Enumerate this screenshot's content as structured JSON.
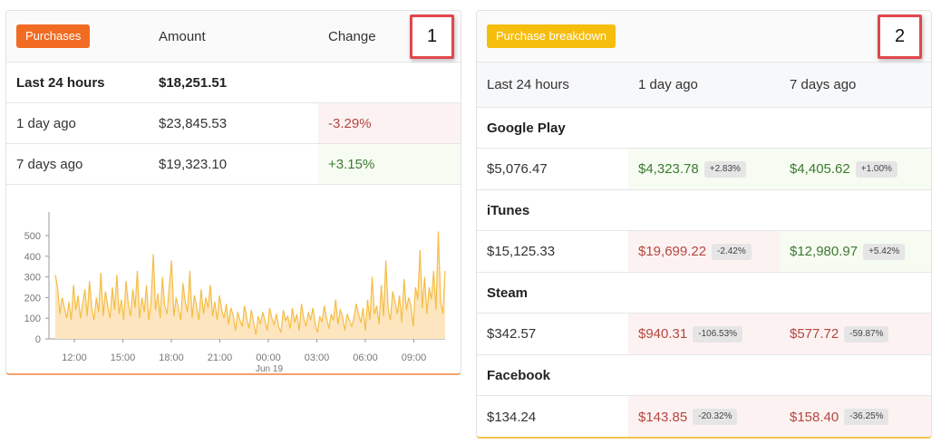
{
  "purchases": {
    "badge": "Purchases",
    "col_amount": "Amount",
    "col_change": "Change",
    "rows": [
      {
        "label": "Last 24 hours",
        "amount": "$18,251.51",
        "change": ""
      },
      {
        "label": "1 day ago",
        "amount": "$23,845.53",
        "change": "-3.29%"
      },
      {
        "label": "7 days ago",
        "amount": "$19,323.10",
        "change": "+3.15%"
      }
    ],
    "callout": "1"
  },
  "chart_data": {
    "type": "area",
    "y_ticks": [
      "500",
      "400",
      "300",
      "200",
      "100",
      "0"
    ],
    "x_ticks": [
      "12:00",
      "15:00",
      "18:00",
      "21:00",
      "00:00",
      "03:00",
      "06:00",
      "09:00"
    ],
    "x_sublabel": "Jun 19",
    "ylim": [
      0,
      500
    ],
    "color": "#f5bd46",
    "fill": "#fde6bf",
    "values": [
      310,
      250,
      120,
      200,
      150,
      100,
      180,
      90,
      260,
      140,
      210,
      100,
      170,
      240,
      110,
      280,
      150,
      90,
      200,
      130,
      320,
      110,
      230,
      160,
      100,
      250,
      140,
      310,
      120,
      190,
      90,
      280,
      170,
      110,
      240,
      150,
      330,
      100,
      200,
      130,
      260,
      90,
      180,
      410,
      140,
      220,
      100,
      300,
      160,
      120,
      250,
      380,
      110,
      200,
      150,
      90,
      270,
      180,
      130,
      330,
      100,
      210,
      160,
      90,
      240,
      120,
      200,
      150,
      260,
      110,
      180,
      90,
      210,
      140,
      100,
      170,
      70,
      150,
      120,
      40,
      130,
      90,
      60,
      160,
      100,
      50,
      140,
      80,
      20,
      110,
      70,
      130,
      90,
      40,
      150,
      100,
      70,
      120,
      60,
      30,
      140,
      90,
      110,
      50,
      150,
      80,
      120,
      40,
      170,
      100,
      60,
      130,
      90,
      150,
      70,
      30,
      110,
      80,
      160,
      100,
      50,
      120,
      90,
      190,
      70,
      140,
      110,
      40,
      120,
      90,
      60,
      100,
      170,
      120,
      80,
      150,
      40,
      190,
      90,
      300,
      120,
      160,
      70,
      260,
      110,
      380,
      150,
      90,
      230,
      180,
      120,
      210,
      80,
      290,
      140,
      200,
      160,
      60,
      250,
      190,
      430,
      150,
      300,
      120,
      250,
      190,
      330,
      140,
      520,
      180,
      120,
      330
    ]
  },
  "breakdown": {
    "badge": "Purchase breakdown",
    "col_now": "Last 24 hours",
    "col_1d": "1 day ago",
    "col_7d": "7 days ago",
    "callout": "2",
    "groups": [
      {
        "name": "Google Play",
        "now": "$5,076.47",
        "d1": "$4,323.78",
        "d1_pct": "+2.83%",
        "d7": "$4,405.62",
        "d7_pct": "+1.00%"
      },
      {
        "name": "iTunes",
        "now": "$15,125.33",
        "d1": "$19,699.22",
        "d1_pct": "-2.42%",
        "d7": "$12,980.97",
        "d7_pct": "+5.42%"
      },
      {
        "name": "Steam",
        "now": "$342.57",
        "d1": "$940.31",
        "d1_pct": "-106.53%",
        "d7": "$577.72",
        "d7_pct": "-59.87%"
      },
      {
        "name": "Facebook",
        "now": "$134.24",
        "d1": "$143.85",
        "d1_pct": "-20.32%",
        "d7": "$158.40",
        "d7_pct": "-36.25%"
      }
    ]
  }
}
